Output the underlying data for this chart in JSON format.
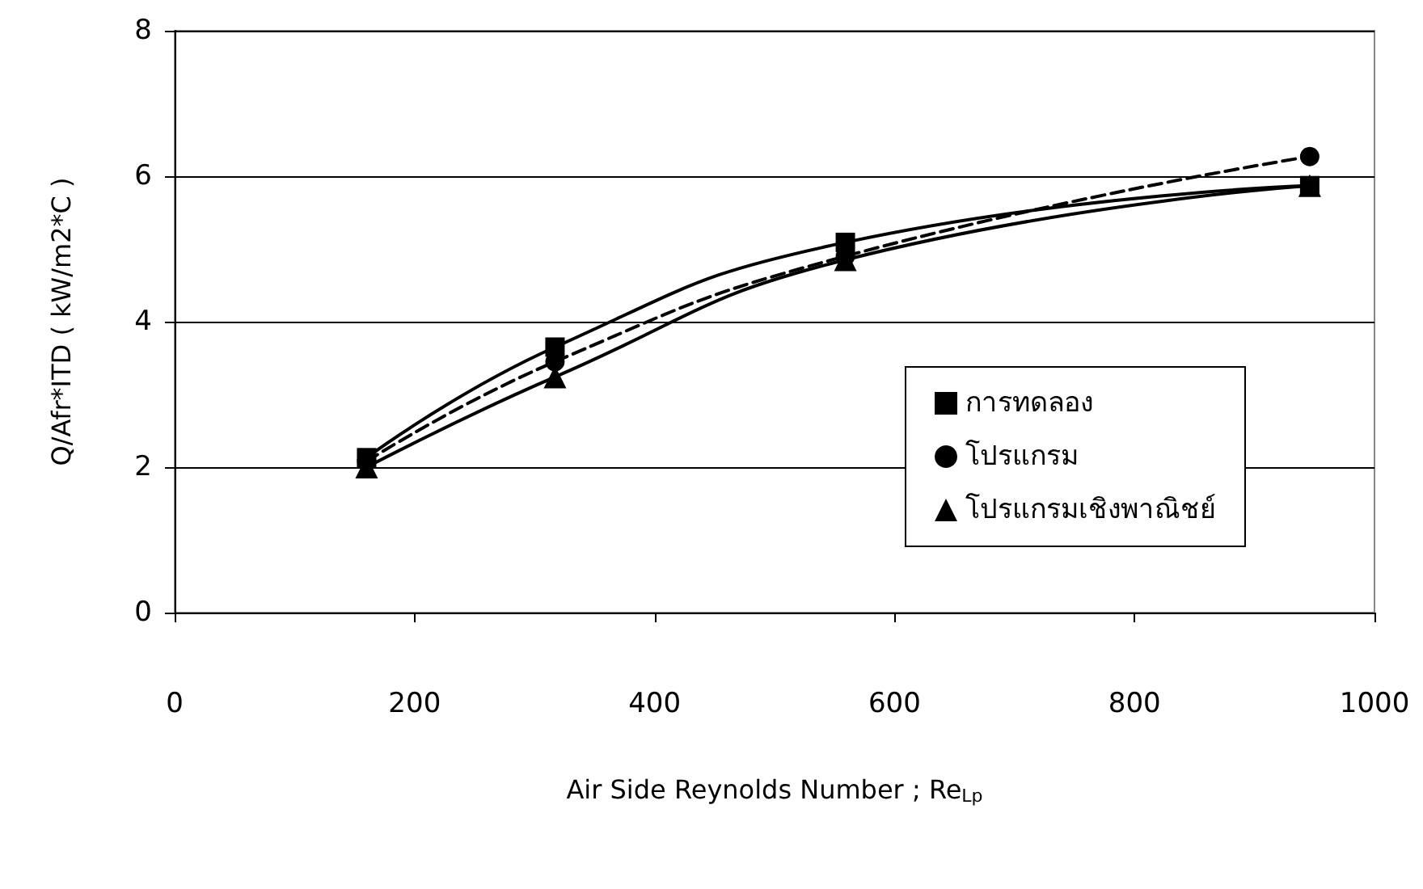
{
  "chart_data": {
    "type": "line",
    "xlabel": "Air Side Reynolds Number ; Re$_{Lp}$",
    "ylabel": "Q/Afr*ITD ( kW/m2*C )",
    "xlim": [
      0,
      1000
    ],
    "xticks": [
      0,
      200,
      400,
      600,
      800,
      1000
    ],
    "ylim": [
      0,
      8
    ],
    "yticks": [
      0,
      2,
      4,
      6,
      8
    ],
    "grid": "y",
    "legend": "bottom right",
    "series": [
      {
        "name": "การทดลอง",
        "color": "#000000",
        "marker": "square",
        "line_style": "solid",
        "x": [
          160,
          317,
          559,
          946
        ],
        "values": [
          2.13,
          3.65,
          5.09,
          5.87
        ]
      },
      {
        "name": "โปรแกรม",
        "color": "#000000",
        "marker": "circle",
        "line_style": "dashed",
        "x": [
          160,
          317,
          559,
          946
        ],
        "values": [
          2.08,
          3.45,
          4.9,
          6.27
        ]
      },
      {
        "name": "โปรแกรมเชิงพาณิชย์",
        "color": "#000000",
        "marker": "triangle",
        "line_style": "solid",
        "x": [
          160,
          317,
          559,
          946
        ],
        "values": [
          2.0,
          3.24,
          4.85,
          5.87
        ]
      }
    ]
  }
}
